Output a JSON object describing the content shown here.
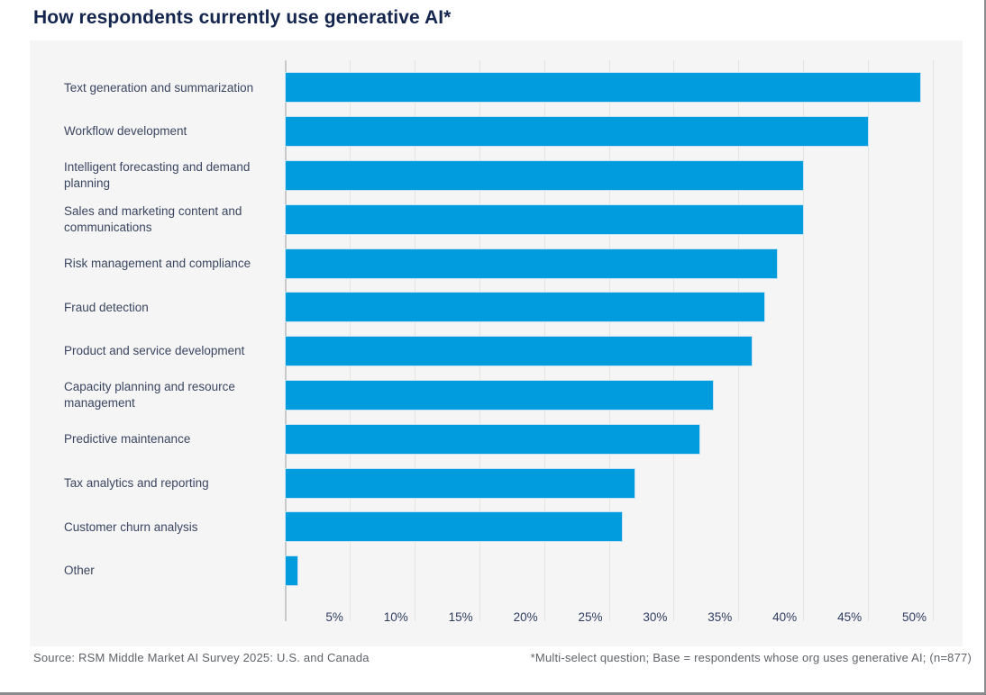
{
  "title": "How respondents currently use generative AI*",
  "chart_data": {
    "type": "bar",
    "orientation": "horizontal",
    "title": "How respondents currently use generative AI*",
    "categories": [
      "Text generation and summarization",
      "Workflow development",
      "Intelligent forecasting and demand planning",
      "Sales and marketing content and communications",
      "Risk management and compliance",
      "Fraud detection",
      "Product and service development",
      "Capacity planning and resource management",
      "Predictive maintenance",
      "Tax analytics and reporting",
      "Customer churn analysis",
      "Other"
    ],
    "values": [
      49,
      45,
      40,
      40,
      38,
      37,
      36,
      33,
      32,
      27,
      26,
      1
    ],
    "unit": "%",
    "xlim": [
      0,
      50
    ],
    "x_tick_step": 5,
    "x_ticks": [
      "5%",
      "10%",
      "15%",
      "20%",
      "25%",
      "30%",
      "35%",
      "40%",
      "45%",
      "50%"
    ],
    "grid": true,
    "legend": false,
    "xlabel": "",
    "ylabel": ""
  },
  "footer": {
    "source": "Source: RSM Middle Market AI Survey 2025: U.S. and Canada",
    "note": "*Multi-select question; Base = respondents whose org uses generative AI; (n=877)"
  },
  "colors": {
    "bar": "#009cde",
    "panel_bg": "#f5f5f6",
    "gridline": "#e2e3e4",
    "axis_line": "#c7c9cb",
    "title_navy": "#14264e",
    "category_label": "#3a4660",
    "tick_label": "#2e3c5e",
    "footer_text": "#5f6368",
    "frame_border": "#8a8b8d"
  }
}
